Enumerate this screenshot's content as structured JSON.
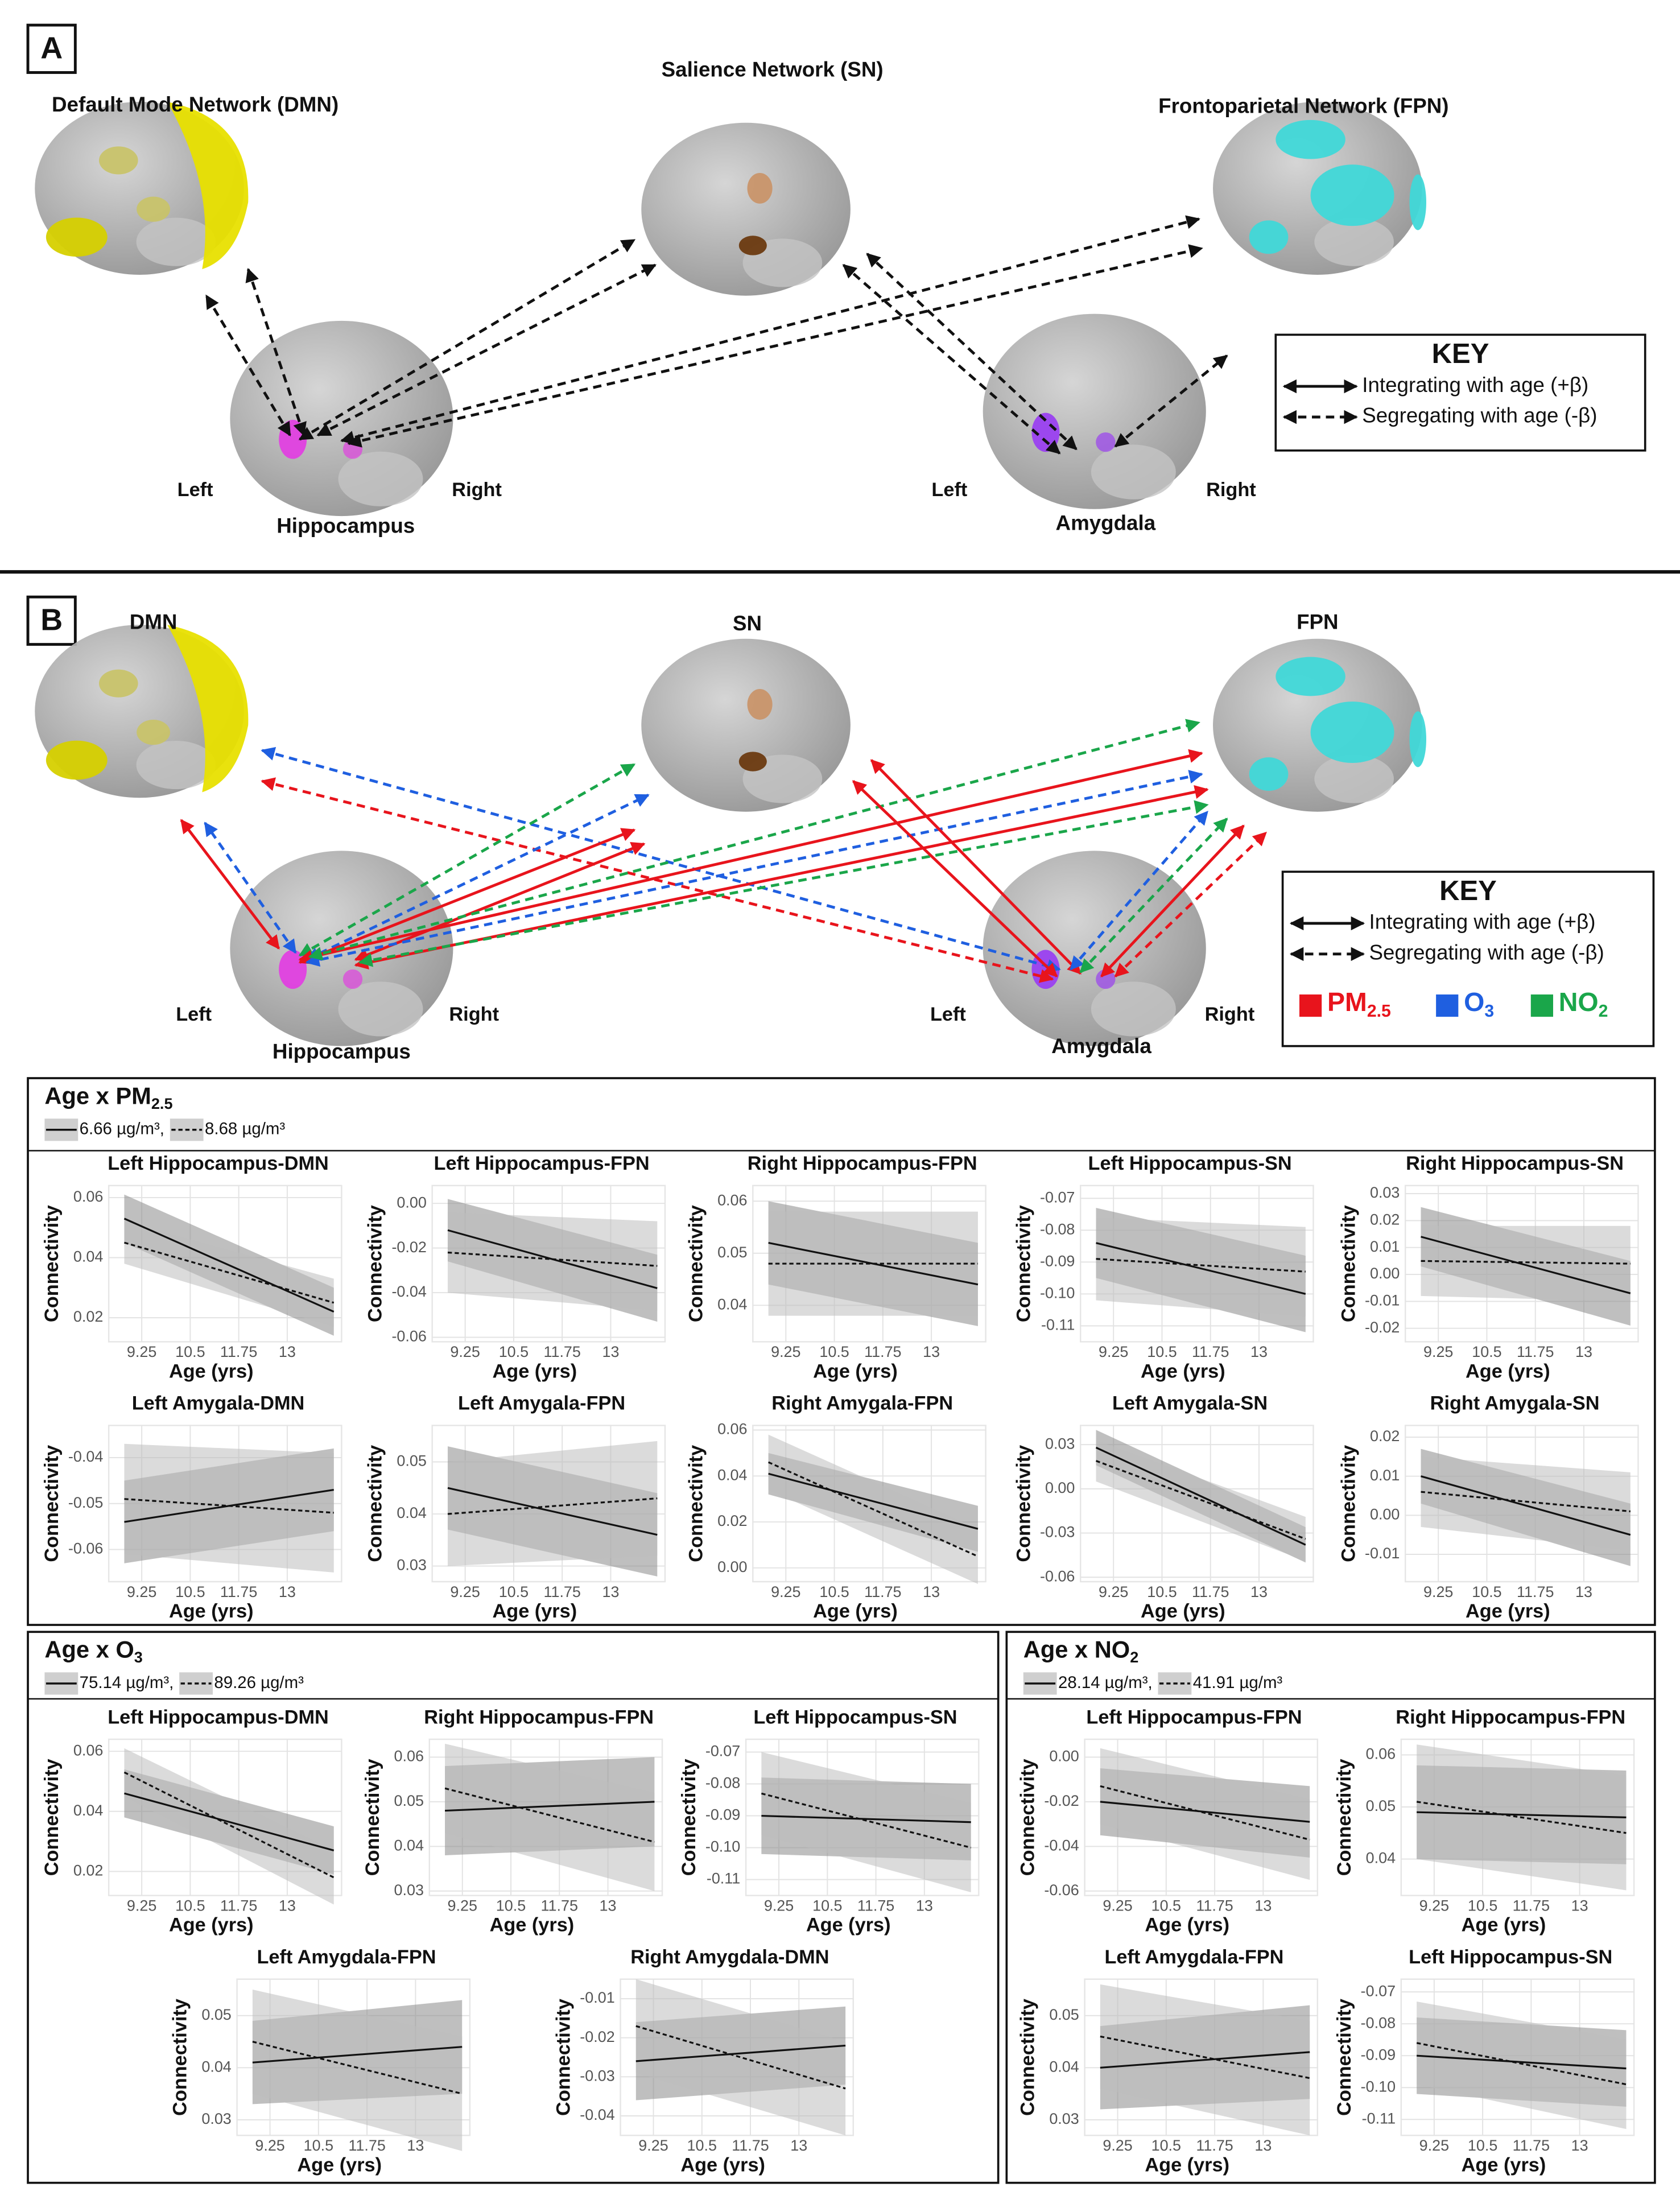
{
  "panel_a": {
    "label": "A",
    "networks": {
      "dmn": "Default Mode Network (DMN)",
      "sn": "Salience Network (SN)",
      "fpn": "Frontoparietal Network (FPN)"
    },
    "hippocampus": {
      "name": "Hippocampus",
      "left": "Left",
      "right": "Right"
    },
    "amygdala": {
      "name": "Amygdala",
      "left": "Left",
      "right": "Right"
    },
    "key": {
      "title": "KEY",
      "entries": [
        "Integrating with age (+β)",
        "Segregating with age (-β)"
      ]
    }
  },
  "panel_b": {
    "label": "B",
    "networks": {
      "dmn": "DMN",
      "sn": "SN",
      "fpn": "FPN"
    },
    "hippocampus": {
      "name": "Hippocampus",
      "left": "Left",
      "right": "Right"
    },
    "amygdala": {
      "name": "Amygdala",
      "left": "Left",
      "right": "Right"
    },
    "key": {
      "title": "KEY",
      "entries": [
        "Integrating with age (+β)",
        "Segregating with age (-β)"
      ],
      "pollutants": [
        {
          "text": "PM",
          "sub": "2.5",
          "color": "#e8141c"
        },
        {
          "text": "O",
          "sub": "3",
          "color": "#1f5fe0"
        },
        {
          "text": "NO",
          "sub": "2",
          "color": "#1aa64a"
        }
      ]
    }
  },
  "plots": {
    "pm25": {
      "title": "Age x PM",
      "title_sub": "2.5",
      "legend": [
        "6.66 µg/m³,",
        "8.68 µg/m³"
      ],
      "line_styles": [
        "solid",
        "dashed"
      ],
      "xlabel": "Age (yrs)",
      "ylabel": "Connectivity",
      "xlim": [
        8.4,
        14.4
      ],
      "xticks": [
        9.25,
        10.5,
        11.75,
        13
      ],
      "x": [
        8.8,
        14.2
      ],
      "grid": true,
      "plots": [
        {
          "title": "Left Hippocampus-DMN",
          "ylim": [
            0.012,
            0.064
          ],
          "yticks": [
            0.02,
            0.04,
            0.06
          ],
          "series": [
            {
              "values": [
                0.053,
                0.022
              ],
              "ci": [
                0.008,
                0.008
              ]
            },
            {
              "values": [
                0.045,
                0.025
              ],
              "ci": [
                0.007,
                0.008
              ]
            }
          ]
        },
        {
          "title": "Left Hippocampus-FPN",
          "ylim": [
            -0.062,
            0.008
          ],
          "yticks": [
            -0.06,
            -0.04,
            -0.02,
            {
              "value": 0,
              "label": "0.00"
            }
          ],
          "series": [
            {
              "values": [
                -0.012,
                -0.038
              ],
              "ci": [
                0.014,
                0.015
              ]
            },
            {
              "values": [
                -0.022,
                -0.028
              ],
              "ci": [
                0.018,
                0.02
              ]
            }
          ]
        },
        {
          "title": "Right Hippocampus-FPN",
          "ylim": [
            0.033,
            0.063
          ],
          "yticks": [
            0.04,
            0.05,
            0.06
          ],
          "series": [
            {
              "values": [
                0.052,
                0.044
              ],
              "ci": [
                0.008,
                0.008
              ]
            },
            {
              "values": [
                0.048,
                0.048
              ],
              "ci": [
                0.01,
                0.01
              ]
            }
          ]
        },
        {
          "title": "Left Hippocampus-SN",
          "ylim": [
            -0.115,
            -0.066
          ],
          "yticks": [
            -0.11,
            {
              "value": -0.1,
              "label": "-0.10"
            },
            -0.09,
            -0.08,
            -0.07
          ],
          "series": [
            {
              "values": [
                -0.084,
                -0.1
              ],
              "ci": [
                0.011,
                0.012
              ]
            },
            {
              "values": [
                -0.089,
                -0.093
              ],
              "ci": [
                0.013,
                0.014
              ]
            }
          ]
        },
        {
          "title": "Right Hippocampus-SN",
          "ylim": [
            -0.025,
            0.033
          ],
          "yticks": [
            -0.02,
            -0.01,
            {
              "value": 0,
              "label": "0.00"
            },
            0.01,
            0.02,
            0.03
          ],
          "series": [
            {
              "values": [
                0.014,
                -0.007
              ],
              "ci": [
                0.011,
                0.012
              ]
            },
            {
              "values": [
                0.005,
                0.004
              ],
              "ci": [
                0.013,
                0.014
              ]
            }
          ]
        },
        {
          "title": "Left Amygala-DMN",
          "ylim": [
            -0.067,
            -0.033
          ],
          "yticks": [
            -0.06,
            -0.05,
            -0.04
          ],
          "series": [
            {
              "values": [
                -0.054,
                -0.047
              ],
              "ci": [
                0.009,
                0.009
              ]
            },
            {
              "values": [
                -0.049,
                -0.052
              ],
              "ci": [
                0.012,
                0.013
              ]
            }
          ]
        },
        {
          "title": "Left Amygala-FPN",
          "ylim": [
            0.027,
            0.057
          ],
          "yticks": [
            0.03,
            0.04,
            0.05
          ],
          "series": [
            {
              "values": [
                0.045,
                0.036
              ],
              "ci": [
                0.008,
                0.008
              ]
            },
            {
              "values": [
                0.04,
                0.043
              ],
              "ci": [
                0.01,
                0.011
              ]
            }
          ]
        },
        {
          "title": "Right Amygala-FPN",
          "ylim": [
            -0.006,
            0.062
          ],
          "yticks": [
            {
              "value": 0,
              "label": "0.00"
            },
            0.02,
            0.04,
            0.06
          ],
          "series": [
            {
              "values": [
                0.041,
                0.017
              ],
              "ci": [
                0.009,
                0.01
              ]
            },
            {
              "values": [
                0.046,
                0.005
              ],
              "ci": [
                0.012,
                0.012
              ]
            }
          ]
        },
        {
          "title": "Left Amygala-SN",
          "ylim": [
            -0.063,
            0.043
          ],
          "yticks": [
            -0.06,
            -0.03,
            {
              "value": 0,
              "label": "0.00"
            },
            0.03
          ],
          "series": [
            {
              "values": [
                0.028,
                -0.038
              ],
              "ci": [
                0.012,
                0.012
              ]
            },
            {
              "values": [
                0.019,
                -0.034
              ],
              "ci": [
                0.014,
                0.015
              ]
            }
          ]
        },
        {
          "title": "Right Amygala-SN",
          "ylim": [
            -0.017,
            0.023
          ],
          "yticks": [
            -0.01,
            {
              "value": 0,
              "label": "0.00"
            },
            0.01,
            0.02
          ],
          "series": [
            {
              "values": [
                0.01,
                -0.005
              ],
              "ci": [
                0.007,
                0.008
              ]
            },
            {
              "values": [
                0.006,
                0.001
              ],
              "ci": [
                0.009,
                0.01
              ]
            }
          ]
        }
      ]
    },
    "o3": {
      "title": "Age x O",
      "title_sub": "3",
      "legend": [
        "75.14 µg/m³,",
        "89.26 µg/m³"
      ],
      "line_styles": [
        "solid",
        "dashed"
      ],
      "xlabel": "Age (yrs)",
      "ylabel": "Connectivity",
      "xlim": [
        8.4,
        14.4
      ],
      "xticks": [
        9.25,
        10.5,
        11.75,
        13
      ],
      "x": [
        8.8,
        14.2
      ],
      "grid": true,
      "plots": [
        {
          "title": "Left Hippocampus-DMN",
          "ylim": [
            0.012,
            0.064
          ],
          "yticks": [
            0.02,
            0.04,
            0.06
          ],
          "series": [
            {
              "values": [
                0.046,
                0.027
              ],
              "ci": [
                0.008,
                0.008
              ]
            },
            {
              "values": [
                0.053,
                0.018
              ],
              "ci": [
                0.008,
                0.009
              ]
            }
          ]
        },
        {
          "title": "Right Hippocampus-FPN",
          "ylim": [
            0.029,
            0.064
          ],
          "yticks": [
            0.03,
            0.04,
            0.05,
            0.06
          ],
          "series": [
            {
              "values": [
                0.048,
                0.05
              ],
              "ci": [
                0.01,
                0.01
              ]
            },
            {
              "values": [
                0.053,
                0.041
              ],
              "ci": [
                0.01,
                0.011
              ]
            }
          ]
        },
        {
          "title": "Left Hippocampus-SN",
          "ylim": [
            -0.115,
            -0.066
          ],
          "yticks": [
            -0.11,
            {
              "value": -0.1,
              "label": "-0.10"
            },
            -0.09,
            -0.08,
            -0.07
          ],
          "series": [
            {
              "values": [
                -0.09,
                -0.092
              ],
              "ci": [
                0.012,
                0.012
              ]
            },
            {
              "values": [
                -0.083,
                -0.1
              ],
              "ci": [
                0.013,
                0.014
              ]
            }
          ]
        },
        {
          "title": "Left Amygdala-FPN",
          "ylim": [
            0.027,
            0.057
          ],
          "yticks": [
            0.03,
            0.04,
            0.05
          ],
          "series": [
            {
              "values": [
                0.041,
                0.044
              ],
              "ci": [
                0.008,
                0.009
              ]
            },
            {
              "values": [
                0.045,
                0.035
              ],
              "ci": [
                0.01,
                0.011
              ]
            }
          ]
        },
        {
          "title": "Right Amygdala-DMN",
          "ylim": [
            -0.045,
            -0.005
          ],
          "yticks": [
            -0.04,
            -0.03,
            -0.02,
            -0.01
          ],
          "series": [
            {
              "values": [
                -0.026,
                -0.022
              ],
              "ci": [
                0.01,
                0.01
              ]
            },
            {
              "values": [
                -0.017,
                -0.033
              ],
              "ci": [
                0.012,
                0.012
              ]
            }
          ]
        }
      ]
    },
    "no2": {
      "title": "Age x NO",
      "title_sub": "2",
      "legend": [
        "28.14 µg/m³,",
        "41.91 µg/m³"
      ],
      "line_styles": [
        "solid",
        "dashed"
      ],
      "xlabel": "Age (yrs)",
      "ylabel": "Connectivity",
      "xlim": [
        8.4,
        14.4
      ],
      "xticks": [
        9.25,
        10.5,
        11.75,
        13
      ],
      "x": [
        8.8,
        14.2
      ],
      "grid": true,
      "plots": [
        {
          "title": "Left Hippocampus-FPN",
          "ylim": [
            -0.062,
            0.008
          ],
          "yticks": [
            -0.06,
            -0.04,
            -0.02,
            {
              "value": 0,
              "label": "0.00"
            }
          ],
          "series": [
            {
              "values": [
                -0.02,
                -0.029
              ],
              "ci": [
                0.015,
                0.016
              ]
            },
            {
              "values": [
                -0.013,
                -0.037
              ],
              "ci": [
                0.017,
                0.018
              ]
            }
          ]
        },
        {
          "title": "Right Hippocampus-FPN",
          "ylim": [
            0.033,
            0.063
          ],
          "yticks": [
            0.04,
            0.05,
            0.06
          ],
          "series": [
            {
              "values": [
                0.049,
                0.048
              ],
              "ci": [
                0.009,
                0.009
              ]
            },
            {
              "values": [
                0.051,
                0.045
              ],
              "ci": [
                0.011,
                0.011
              ]
            }
          ]
        },
        {
          "title": "Left Amygdala-FPN",
          "ylim": [
            0.027,
            0.057
          ],
          "yticks": [
            0.03,
            0.04,
            0.05
          ],
          "series": [
            {
              "values": [
                0.04,
                0.043
              ],
              "ci": [
                0.008,
                0.009
              ]
            },
            {
              "values": [
                0.046,
                0.038
              ],
              "ci": [
                0.01,
                0.011
              ]
            }
          ]
        },
        {
          "title": "Left Hippocampus-SN",
          "ylim": [
            -0.115,
            -0.066
          ],
          "yticks": [
            -0.11,
            {
              "value": -0.1,
              "label": "-0.10"
            },
            -0.09,
            -0.08,
            -0.07
          ],
          "series": [
            {
              "values": [
                -0.09,
                -0.094
              ],
              "ci": [
                0.012,
                0.012
              ]
            },
            {
              "values": [
                -0.086,
                -0.099
              ],
              "ci": [
                0.013,
                0.014
              ]
            }
          ]
        }
      ]
    }
  }
}
